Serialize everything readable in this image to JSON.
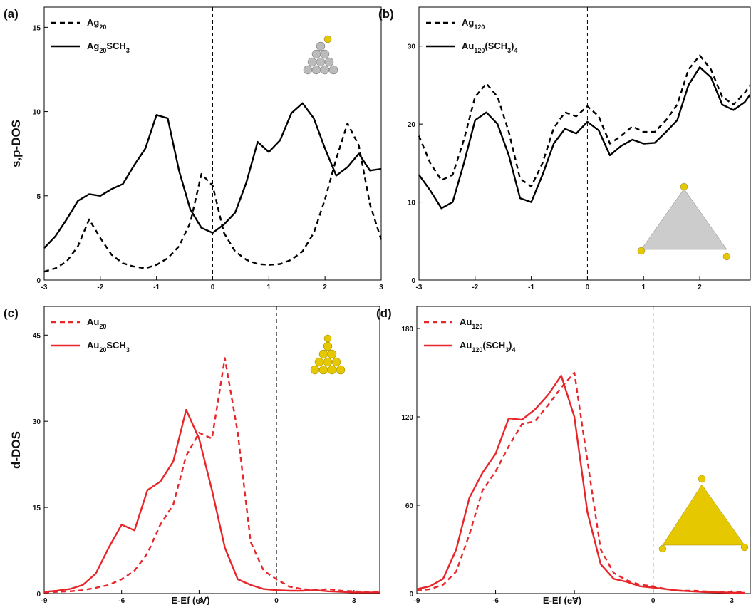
{
  "chart_data": [
    {
      "type": "line",
      "panel_label": "(a)",
      "y_label": "s,p-DOS",
      "legend": "upper left",
      "vline": 0,
      "xlim": [
        -3,
        3
      ],
      "ylim": [
        0,
        16.2
      ],
      "xticks": [
        -3,
        -2,
        -1,
        0,
        1,
        2,
        3
      ],
      "yticks": [
        0,
        5,
        10,
        15
      ],
      "x": [
        -3,
        -2.8,
        -2.6,
        -2.4,
        -2.2,
        -2,
        -1.8,
        -1.6,
        -1.4,
        -1.2,
        -1,
        -0.8,
        -0.6,
        -0.4,
        -0.2,
        0,
        0.2,
        0.4,
        0.6,
        0.8,
        1,
        1.2,
        1.4,
        1.6,
        1.8,
        2,
        2.2,
        2.4,
        2.6,
        2.8,
        3
      ],
      "series": [
        {
          "name": "Ag20",
          "color": "#000000",
          "linestyle": "dashed",
          "values": [
            0.5,
            0.7,
            1.1,
            2.0,
            3.6,
            2.5,
            1.5,
            1.0,
            0.8,
            0.7,
            0.9,
            1.3,
            2.0,
            3.4,
            6.3,
            5.6,
            2.8,
            1.7,
            1.2,
            0.95,
            0.9,
            0.95,
            1.2,
            1.7,
            2.8,
            4.8,
            7.2,
            9.3,
            8.0,
            4.5,
            2.4
          ]
        },
        {
          "name": "Ag20SCH3",
          "color": "#000000",
          "linestyle": "solid",
          "values": [
            1.9,
            2.6,
            3.6,
            4.7,
            5.1,
            5.0,
            5.4,
            5.7,
            6.8,
            7.8,
            9.8,
            9.6,
            6.5,
            4.2,
            3.1,
            2.8,
            3.3,
            4.0,
            5.8,
            8.2,
            7.6,
            8.3,
            9.9,
            10.5,
            9.6,
            7.8,
            6.2,
            6.7,
            7.5,
            6.5,
            6.6
          ]
        }
      ]
    },
    {
      "type": "line",
      "panel_label": "(b)",
      "legend": "upper left",
      "vline": 0,
      "xlim": [
        -3,
        2.9
      ],
      "ylim": [
        0,
        35
      ],
      "xticks": [
        -3,
        -2,
        -1,
        0,
        1,
        2
      ],
      "yticks": [
        0,
        10,
        20,
        30
      ],
      "x": [
        -3,
        -2.8,
        -2.6,
        -2.4,
        -2.2,
        -2,
        -1.8,
        -1.6,
        -1.4,
        -1.2,
        -1,
        -0.8,
        -0.6,
        -0.4,
        -0.2,
        0,
        0.2,
        0.4,
        0.6,
        0.8,
        1,
        1.2,
        1.4,
        1.6,
        1.8,
        2,
        2.2,
        2.4,
        2.6,
        2.8,
        2.9
      ],
      "series": [
        {
          "name": "Ag120",
          "color": "#000000",
          "linestyle": "dashed",
          "values": [
            18.5,
            15,
            12.8,
            13.5,
            18,
            23.5,
            25.2,
            23.5,
            19,
            13,
            12,
            15,
            19.5,
            21.5,
            21,
            22.3,
            21,
            17.5,
            18.5,
            19.7,
            19,
            19,
            20.5,
            22.5,
            27,
            28.8,
            27,
            23.5,
            22.5,
            24,
            25
          ]
        },
        {
          "name": "Au120(SCH3)4",
          "color": "#000000",
          "linestyle": "solid",
          "values": [
            13.5,
            11.5,
            9.2,
            10,
            15,
            20.5,
            21.5,
            20,
            16,
            10.5,
            10,
            13.5,
            17.5,
            19.4,
            18.8,
            20.3,
            19.2,
            16,
            17.2,
            18,
            17.5,
            17.6,
            19,
            20.5,
            25,
            27.3,
            26,
            22.5,
            21.8,
            22.8,
            23.8
          ]
        }
      ]
    },
    {
      "type": "line",
      "panel_label": "(c)",
      "y_label": "d-DOS",
      "x_label": "E-Ef (eV)",
      "legend": "upper left",
      "vline": 0,
      "xlim": [
        -9,
        4
      ],
      "ylim": [
        0,
        50
      ],
      "xticks": [
        -9,
        -6,
        -3,
        0,
        3
      ],
      "yticks": [
        0,
        15,
        30,
        45
      ],
      "x": [
        -9,
        -8.5,
        -8,
        -7.5,
        -7,
        -6.5,
        -6,
        -5.5,
        -5,
        -4.5,
        -4,
        -3.5,
        -3,
        -2.5,
        -2,
        -1.5,
        -1,
        -0.5,
        0,
        0.5,
        1,
        1.5,
        2,
        2.5,
        3,
        3.5,
        4
      ],
      "series": [
        {
          "name": "Au20",
          "color": "#e8262a",
          "linestyle": "dashed",
          "values": [
            0.2,
            0.3,
            0.4,
            0.6,
            1,
            1.5,
            2.5,
            4,
            7,
            12,
            15.5,
            24,
            28,
            27,
            41,
            28,
            9,
            4,
            2.5,
            1.2,
            0.8,
            0.6,
            0.8,
            0.5,
            0.4,
            0.3,
            0.3
          ]
        },
        {
          "name": "Au20SCH3",
          "color": "#e8262a",
          "linestyle": "solid",
          "values": [
            0.3,
            0.5,
            0.8,
            1.5,
            3.5,
            8,
            12,
            11,
            18,
            19.5,
            23,
            32,
            27,
            18,
            8,
            2.5,
            1.5,
            0.8,
            0.6,
            0.5,
            0.5,
            0.6,
            0.4,
            0.3,
            0.2,
            0.2,
            0.2
          ]
        }
      ]
    },
    {
      "type": "line",
      "panel_label": "(d)",
      "x_label": "E-Ef (eV)",
      "legend": "upper left",
      "vline": 0,
      "xlim": [
        -9,
        3.7
      ],
      "ylim": [
        0,
        195
      ],
      "xticks": [
        -9,
        -6,
        -3,
        0,
        3
      ],
      "yticks": [
        0,
        60,
        120,
        180
      ],
      "x": [
        -9,
        -8.5,
        -8,
        -7.5,
        -7,
        -6.5,
        -6,
        -5.5,
        -5,
        -4.5,
        -4,
        -3.5,
        -3,
        -2.5,
        -2,
        -1.5,
        -1,
        -0.5,
        0,
        0.5,
        1,
        1.5,
        2,
        2.5,
        3,
        3.5
      ],
      "series": [
        {
          "name": "Au120",
          "color": "#e8262a",
          "linestyle": "dashed",
          "values": [
            2,
            3,
            6,
            15,
            40,
            70,
            83,
            100,
            115,
            117,
            128,
            140,
            150,
            90,
            30,
            14,
            9,
            6,
            5,
            3,
            2,
            2,
            1.5,
            1,
            1,
            1
          ]
        },
        {
          "name": "Au120(SCH3)4",
          "color": "#e8262a",
          "linestyle": "solid",
          "values": [
            3,
            5,
            10,
            30,
            65,
            82,
            95,
            119,
            118,
            125,
            135,
            148,
            120,
            55,
            20,
            10,
            8,
            5,
            4,
            3,
            2,
            1.5,
            1,
            0.8,
            0.6,
            0.5
          ]
        }
      ]
    }
  ]
}
